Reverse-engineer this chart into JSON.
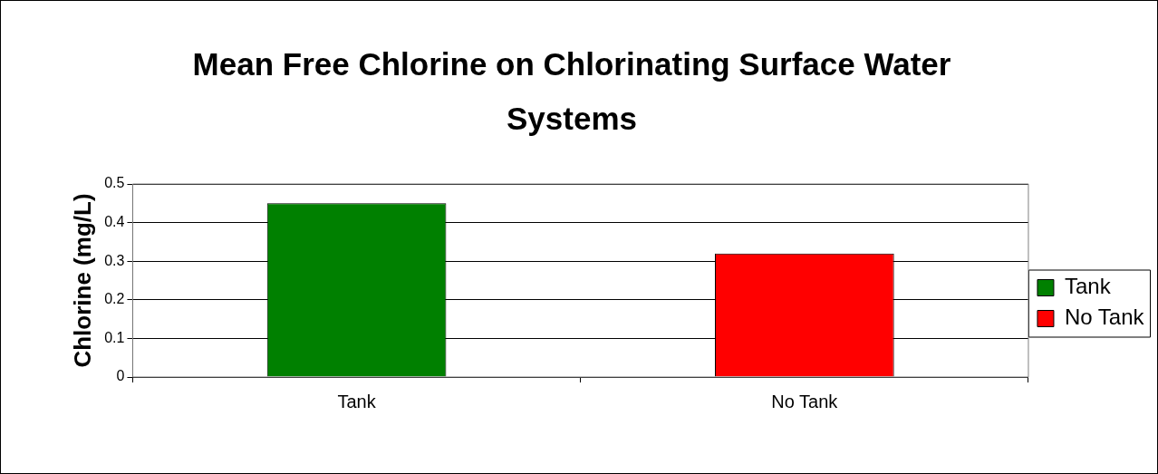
{
  "chart_data": {
    "type": "bar",
    "title": "Mean Free Chlorine on Chlorinating Surface Water Systems",
    "ylabel": "Chlorine (mg/L)",
    "categories": [
      "Tank",
      "No Tank"
    ],
    "series": [
      {
        "name": "Tank",
        "color": "#008000",
        "values": [
          0.45,
          null
        ]
      },
      {
        "name": "No Tank",
        "color": "#ff0000",
        "values": [
          null,
          0.32
        ]
      }
    ],
    "ylim": [
      0,
      0.5
    ],
    "yticks": [
      0,
      0.1,
      0.2,
      0.3,
      0.4,
      0.5
    ],
    "grid": "y",
    "legend": "right"
  }
}
